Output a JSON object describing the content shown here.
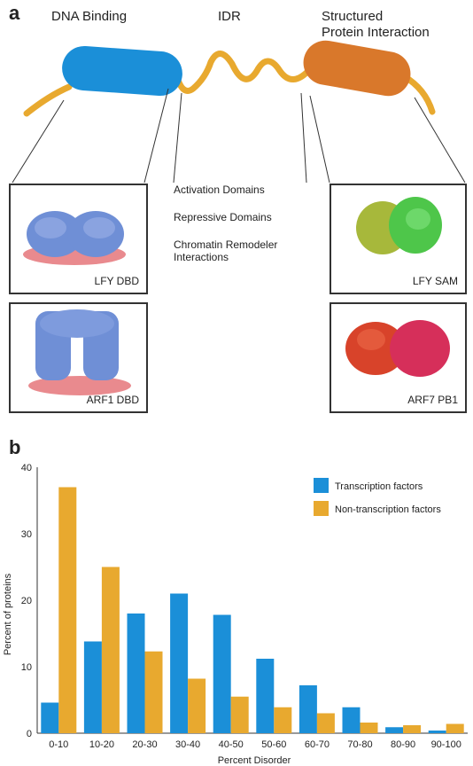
{
  "panel_a": {
    "label": "a",
    "headers": {
      "left": "DNA Binding",
      "middle": "IDR",
      "right_line1": "Structured",
      "right_line2": "Protein Interaction"
    },
    "middle_items": [
      "Activation Domains",
      "Repressive Domains",
      "Chromatin Remodeler",
      "Interactions"
    ],
    "structures": {
      "top_left": "LFY DBD",
      "bottom_left": "ARF1 DBD",
      "top_right": "LFY SAM",
      "bottom_right": "ARF7 PB1"
    },
    "colors": {
      "linker": "#E8A92F",
      "dna_binding": "#1B8FD8",
      "protein_interaction": "#D9782B",
      "protein_blue": "#6F8FD6",
      "dna_pink": "#E98A8E",
      "sam_yellow": "#A7B83B",
      "sam_green": "#4EC64A",
      "pb1_orange": "#D8432A",
      "pb1_red": "#D62F5A"
    }
  },
  "panel_b": {
    "label": "b"
  },
  "chart_data": {
    "type": "bar",
    "categories": [
      "0-10",
      "10-20",
      "20-30",
      "30-40",
      "40-50",
      "50-60",
      "60-70",
      "70-80",
      "80-90",
      "90-100"
    ],
    "series": [
      {
        "name": "Transcription factors",
        "color": "#1B8FD8",
        "values": [
          4.6,
          13.8,
          18.0,
          21.0,
          17.8,
          11.2,
          7.2,
          3.9,
          0.9,
          0.4
        ]
      },
      {
        "name": "Non-transcription factors",
        "color": "#E8A92F",
        "values": [
          37.0,
          25.0,
          12.3,
          8.2,
          5.5,
          3.9,
          3.0,
          1.6,
          1.2,
          1.4
        ]
      }
    ],
    "xlabel": "Percent Disorder",
    "ylabel": "Percent of proteins",
    "ylim": [
      0,
      40
    ],
    "yticks": [
      0,
      10,
      20,
      30,
      40
    ],
    "grid": false,
    "legend": "top-right"
  }
}
